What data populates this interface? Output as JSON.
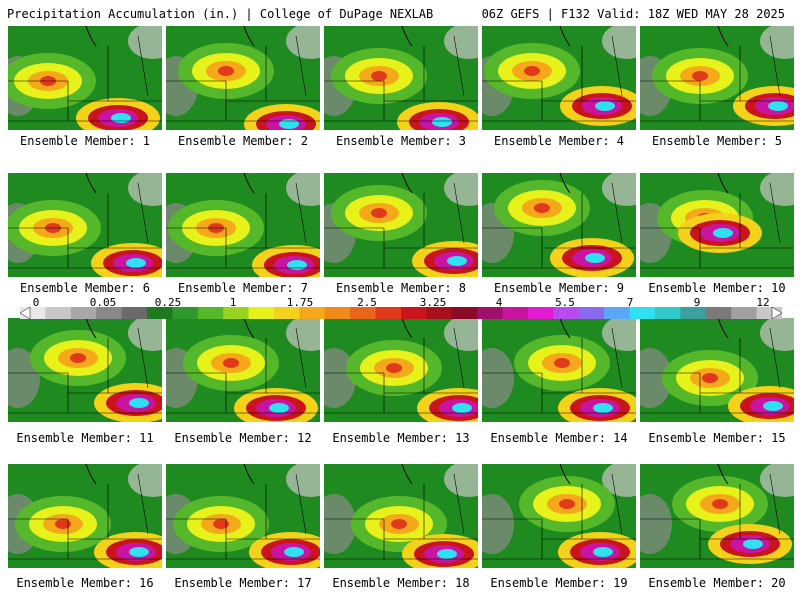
{
  "header": {
    "left_title": "Precipitation Accumulation (in.) | College of DuPage NEXLAB",
    "right_title": "06Z GEFS | F132 Valid: 18Z WED MAY 28 2025"
  },
  "members": [
    {
      "label": "Ensemble Member: 1"
    },
    {
      "label": "Ensemble Member: 2"
    },
    {
      "label": "Ensemble Member: 3"
    },
    {
      "label": "Ensemble Member: 4"
    },
    {
      "label": "Ensemble Member: 5"
    },
    {
      "label": "Ensemble Member: 6"
    },
    {
      "label": "Ensemble Member: 7"
    },
    {
      "label": "Ensemble Member: 8"
    },
    {
      "label": "Ensemble Member: 9"
    },
    {
      "label": "Ensemble Member: 10"
    },
    {
      "label": "Ensemble Member: 11"
    },
    {
      "label": "Ensemble Member: 12"
    },
    {
      "label": "Ensemble Member: 13"
    },
    {
      "label": "Ensemble Member: 14"
    },
    {
      "label": "Ensemble Member: 15"
    },
    {
      "label": "Ensemble Member: 16"
    },
    {
      "label": "Ensemble Member: 17"
    },
    {
      "label": "Ensemble Member: 18"
    },
    {
      "label": "Ensemble Member: 19"
    },
    {
      "label": "Ensemble Member: 20"
    }
  ],
  "colorbar": {
    "tick_labels": [
      "0",
      "0.05",
      "0.25",
      "1",
      "1.75",
      "2.5",
      "3.25",
      "4",
      "5.5",
      "7",
      "9",
      "12"
    ],
    "colors": [
      "#e8e8e8",
      "#c8c8c8",
      "#a8a8a8",
      "#888888",
      "#6a6a6a",
      "#1f7a1f",
      "#2e9a2e",
      "#55b82a",
      "#9ad31f",
      "#e6f21a",
      "#f5d21a",
      "#f5a91a",
      "#f08a1a",
      "#e8651a",
      "#e03a1a",
      "#c8141a",
      "#a8101e",
      "#8a0a2a",
      "#a0106a",
      "#c814a0",
      "#e41ad2",
      "#b84af0",
      "#8a6af0",
      "#5aa8f5",
      "#2ee0f0",
      "#30c8c8",
      "#3aa0a0",
      "#7a7a7a",
      "#a0a0a0",
      "#c8c8c8"
    ]
  }
}
